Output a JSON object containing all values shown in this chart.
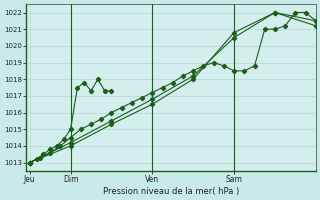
{
  "background_color": "#c8eaea",
  "plot_bg_color": "#d4eded",
  "grid_color": "#b0d8d8",
  "line_color": "#1a5e1a",
  "marker_color": "#1a5e1a",
  "xlabel": "Pression niveau de la mer( hPa )",
  "ylim": [
    1012.5,
    1022.5
  ],
  "yticks": [
    1013,
    1014,
    1015,
    1016,
    1017,
    1018,
    1019,
    1020,
    1021,
    1022
  ],
  "xtick_labels": [
    "Jeu",
    "Dim",
    "Ven",
    "Sam"
  ],
  "xtick_positions": [
    0,
    24,
    72,
    120
  ],
  "vline_positions": [
    24,
    72,
    120
  ],
  "xlim": [
    -2,
    168
  ],
  "series1_x": [
    0,
    4,
    8,
    12,
    16,
    20,
    24,
    28,
    32,
    36,
    40,
    44,
    48
  ],
  "series1_y": [
    1013.0,
    1013.2,
    1013.5,
    1013.8,
    1014.0,
    1014.4,
    1015.0,
    1017.5,
    1017.8,
    1017.3,
    1018.0,
    1017.3,
    1017.3
  ],
  "series2_x": [
    0,
    6,
    12,
    18,
    24,
    30,
    36,
    42,
    48,
    54,
    60,
    66,
    72,
    78,
    84,
    90,
    96,
    102,
    108,
    114,
    120,
    126,
    132,
    138,
    144,
    150,
    156,
    162,
    168
  ],
  "series2_y": [
    1013.0,
    1013.3,
    1013.6,
    1014.0,
    1014.5,
    1015.0,
    1015.3,
    1015.6,
    1016.0,
    1016.3,
    1016.6,
    1016.9,
    1017.2,
    1017.5,
    1017.8,
    1018.2,
    1018.5,
    1018.8,
    1019.0,
    1018.8,
    1018.5,
    1018.5,
    1018.8,
    1021.0,
    1021.0,
    1021.2,
    1022.0,
    1022.0,
    1021.5
  ],
  "series3_x": [
    0,
    24,
    48,
    72,
    96,
    120,
    144,
    168
  ],
  "series3_y": [
    1013.0,
    1014.2,
    1015.5,
    1016.8,
    1018.2,
    1020.5,
    1022.0,
    1021.5
  ],
  "series4_x": [
    0,
    24,
    48,
    72,
    96,
    120,
    144,
    168
  ],
  "series4_y": [
    1013.0,
    1014.0,
    1015.3,
    1016.5,
    1018.0,
    1020.8,
    1022.0,
    1021.2
  ]
}
